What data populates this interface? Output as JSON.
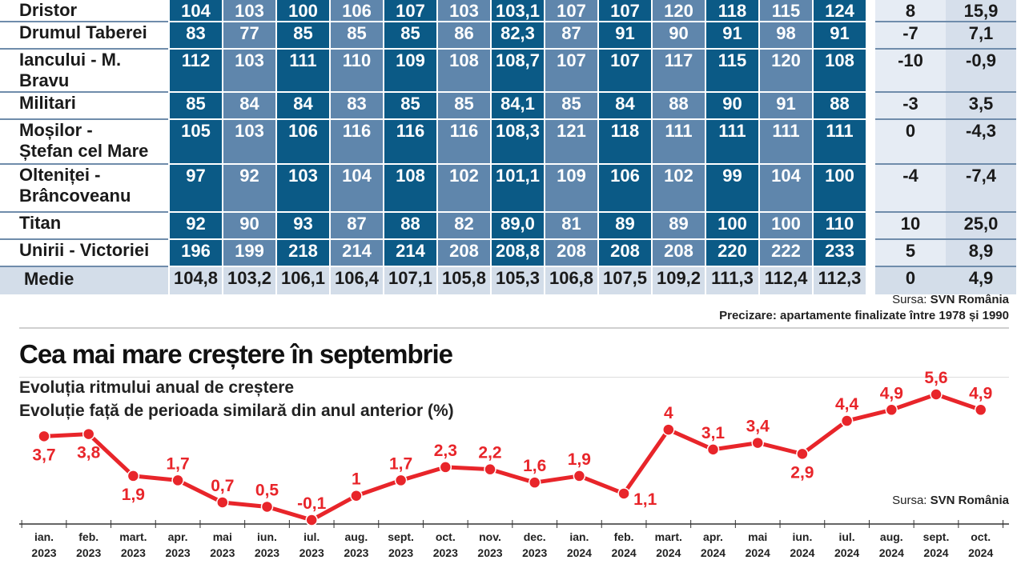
{
  "table": {
    "rows": [
      {
        "name_lines": [
          "Dristor"
        ],
        "values": [
          "104",
          "103",
          "100",
          "106",
          "107",
          "103",
          "103,1",
          "107",
          "107",
          "120",
          "118",
          "115",
          "124"
        ],
        "var1": "8",
        "var2": "15,9"
      },
      {
        "name_lines": [
          "Drumul Taberei"
        ],
        "values": [
          "83",
          "77",
          "85",
          "85",
          "85",
          "86",
          "82,3",
          "87",
          "91",
          "90",
          "91",
          "98",
          "91"
        ],
        "var1": "-7",
        "var2": "7,1"
      },
      {
        "name_lines": [
          "Iancului - M. Bravu"
        ],
        "values": [
          "112",
          "103",
          "111",
          "110",
          "109",
          "108",
          "108,7",
          "107",
          "107",
          "117",
          "115",
          "120",
          "108"
        ],
        "var1": "-10",
        "var2": "-0,9"
      },
      {
        "name_lines": [
          "Militari"
        ],
        "values": [
          "85",
          "84",
          "84",
          "83",
          "85",
          "85",
          "84,1",
          "85",
          "84",
          "88",
          "90",
          "91",
          "88"
        ],
        "var1": "-3",
        "var2": "3,5"
      },
      {
        "name_lines": [
          "Moșilor -",
          "Ștefan cel Mare"
        ],
        "values": [
          "105",
          "103",
          "106",
          "116",
          "116",
          "116",
          "108,3",
          "121",
          "118",
          "111",
          "111",
          "111",
          "111"
        ],
        "var1": "0",
        "var2": "-4,3"
      },
      {
        "name_lines": [
          "Olteniței -",
          "Brâncoveanu"
        ],
        "values": [
          "97",
          "92",
          "103",
          "104",
          "108",
          "102",
          "101,1",
          "109",
          "106",
          "102",
          "99",
          "104",
          "100"
        ],
        "var1": "-4",
        "var2": "-7,4"
      },
      {
        "name_lines": [
          "Titan"
        ],
        "values": [
          "92",
          "90",
          "93",
          "87",
          "88",
          "82",
          "89,0",
          "81",
          "89",
          "89",
          "100",
          "100",
          "110"
        ],
        "var1": "10",
        "var2": "25,0"
      },
      {
        "name_lines": [
          "Unirii - Victoriei"
        ],
        "values": [
          "196",
          "199",
          "218",
          "214",
          "214",
          "208",
          "208,8",
          "208",
          "208",
          "208",
          "220",
          "222",
          "233"
        ],
        "var1": "5",
        "var2": "8,9"
      }
    ],
    "average": {
      "name": "Medie",
      "values": [
        "104,8",
        "103,2",
        "106,1",
        "106,4",
        "107,1",
        "105,8",
        "105,3",
        "106,8",
        "107,5",
        "109,2",
        "111,3",
        "112,4",
        "112,3"
      ],
      "var1": "0",
      "var2": "4,9"
    },
    "source_label": "Sursa:",
    "source_value": "SVN România",
    "note_label": "Precizare:",
    "note_value": "apartamente finalizate între 1978 și 1990",
    "colors": {
      "dark": "#0b5a86",
      "light": "#5f86ac",
      "average": "#d3dde9"
    }
  },
  "chart_data": {
    "type": "line",
    "title": "Cea mai mare creștere în septembrie",
    "subtitle": "Evoluția ritmului anual de creștere",
    "subtitle2": "Evoluție față de perioada similară din anul anterior (%)",
    "categories": [
      [
        "ian.",
        "2023"
      ],
      [
        "feb.",
        "2023"
      ],
      [
        "mart.",
        "2023"
      ],
      [
        "apr.",
        "2023"
      ],
      [
        "mai",
        "2023"
      ],
      [
        "iun.",
        "2023"
      ],
      [
        "iul.",
        "2023"
      ],
      [
        "aug.",
        "2023"
      ],
      [
        "sept.",
        "2023"
      ],
      [
        "oct.",
        "2023"
      ],
      [
        "nov.",
        "2023"
      ],
      [
        "dec.",
        "2023"
      ],
      [
        "ian.",
        "2024"
      ],
      [
        "feb.",
        "2024"
      ],
      [
        "mart.",
        "2024"
      ],
      [
        "apr.",
        "2024"
      ],
      [
        "mai",
        "2024"
      ],
      [
        "iun.",
        "2024"
      ],
      [
        "iul.",
        "2024"
      ],
      [
        "aug.",
        "2024"
      ],
      [
        "sept.",
        "2024"
      ],
      [
        "oct.",
        "2024"
      ]
    ],
    "values": [
      3.7,
      3.8,
      1.9,
      1.7,
      0.7,
      0.5,
      -0.1,
      1,
      1.7,
      2.3,
      2.2,
      1.6,
      1.9,
      1.1,
      4,
      3.1,
      3.4,
      2.9,
      4.4,
      4.9,
      5.6,
      4.9
    ],
    "labels": [
      "3,7",
      "3,8",
      "1,9",
      "1,7",
      "0,7",
      "0,5",
      "-0,1",
      "1",
      "1,7",
      "2,3",
      "2,2",
      "1,6",
      "1,9",
      "1,1",
      "4",
      "3,1",
      "3,4",
      "2,9",
      "4,4",
      "4,9",
      "5,6",
      "4,9"
    ],
    "label_positions": [
      "below",
      "below",
      "below",
      "above",
      "above",
      "above",
      "above",
      "above",
      "above",
      "above",
      "above",
      "above",
      "above",
      "right",
      "above",
      "above",
      "above",
      "below",
      "above",
      "above",
      "above",
      "above"
    ],
    "ylim": [
      -0.1,
      5.6
    ],
    "grid": false,
    "line_color": "#e8252a",
    "source_label": "Sursa:",
    "source_value": "SVN România"
  }
}
